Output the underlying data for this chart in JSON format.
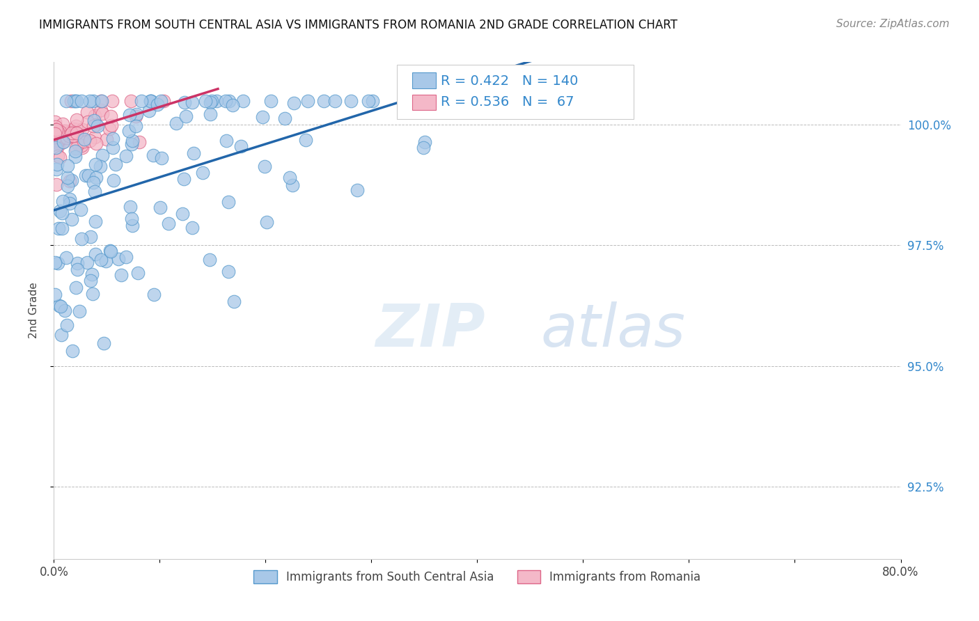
{
  "title": "IMMIGRANTS FROM SOUTH CENTRAL ASIA VS IMMIGRANTS FROM ROMANIA 2ND GRADE CORRELATION CHART",
  "source": "Source: ZipAtlas.com",
  "xlabel_blue": "Immigrants from South Central Asia",
  "xlabel_pink": "Immigrants from Romania",
  "ylabel": "2nd Grade",
  "xlim": [
    0.0,
    0.8
  ],
  "ylim": [
    0.91,
    1.013
  ],
  "yticks": [
    0.925,
    0.95,
    0.975,
    1.0
  ],
  "ytick_labels": [
    "92.5%",
    "95.0%",
    "97.5%",
    "100.0%"
  ],
  "xticks": [
    0.0,
    0.1,
    0.2,
    0.3,
    0.4,
    0.5,
    0.6,
    0.7,
    0.8
  ],
  "xtick_labels": [
    "0.0%",
    "",
    "",
    "",
    "",
    "",
    "",
    "",
    "80.0%"
  ],
  "R_blue": 0.422,
  "N_blue": 140,
  "R_pink": 0.536,
  "N_pink": 67,
  "blue_dot_color": "#a8c8e8",
  "blue_edge_color": "#5599cc",
  "pink_dot_color": "#f4b8c8",
  "pink_edge_color": "#dd6688",
  "blue_line_color": "#2266aa",
  "pink_line_color": "#cc3366",
  "legend_text_color": "#3388cc",
  "watermark_zip_color": "#c8dff0",
  "watermark_atlas_color": "#b0c8e0"
}
